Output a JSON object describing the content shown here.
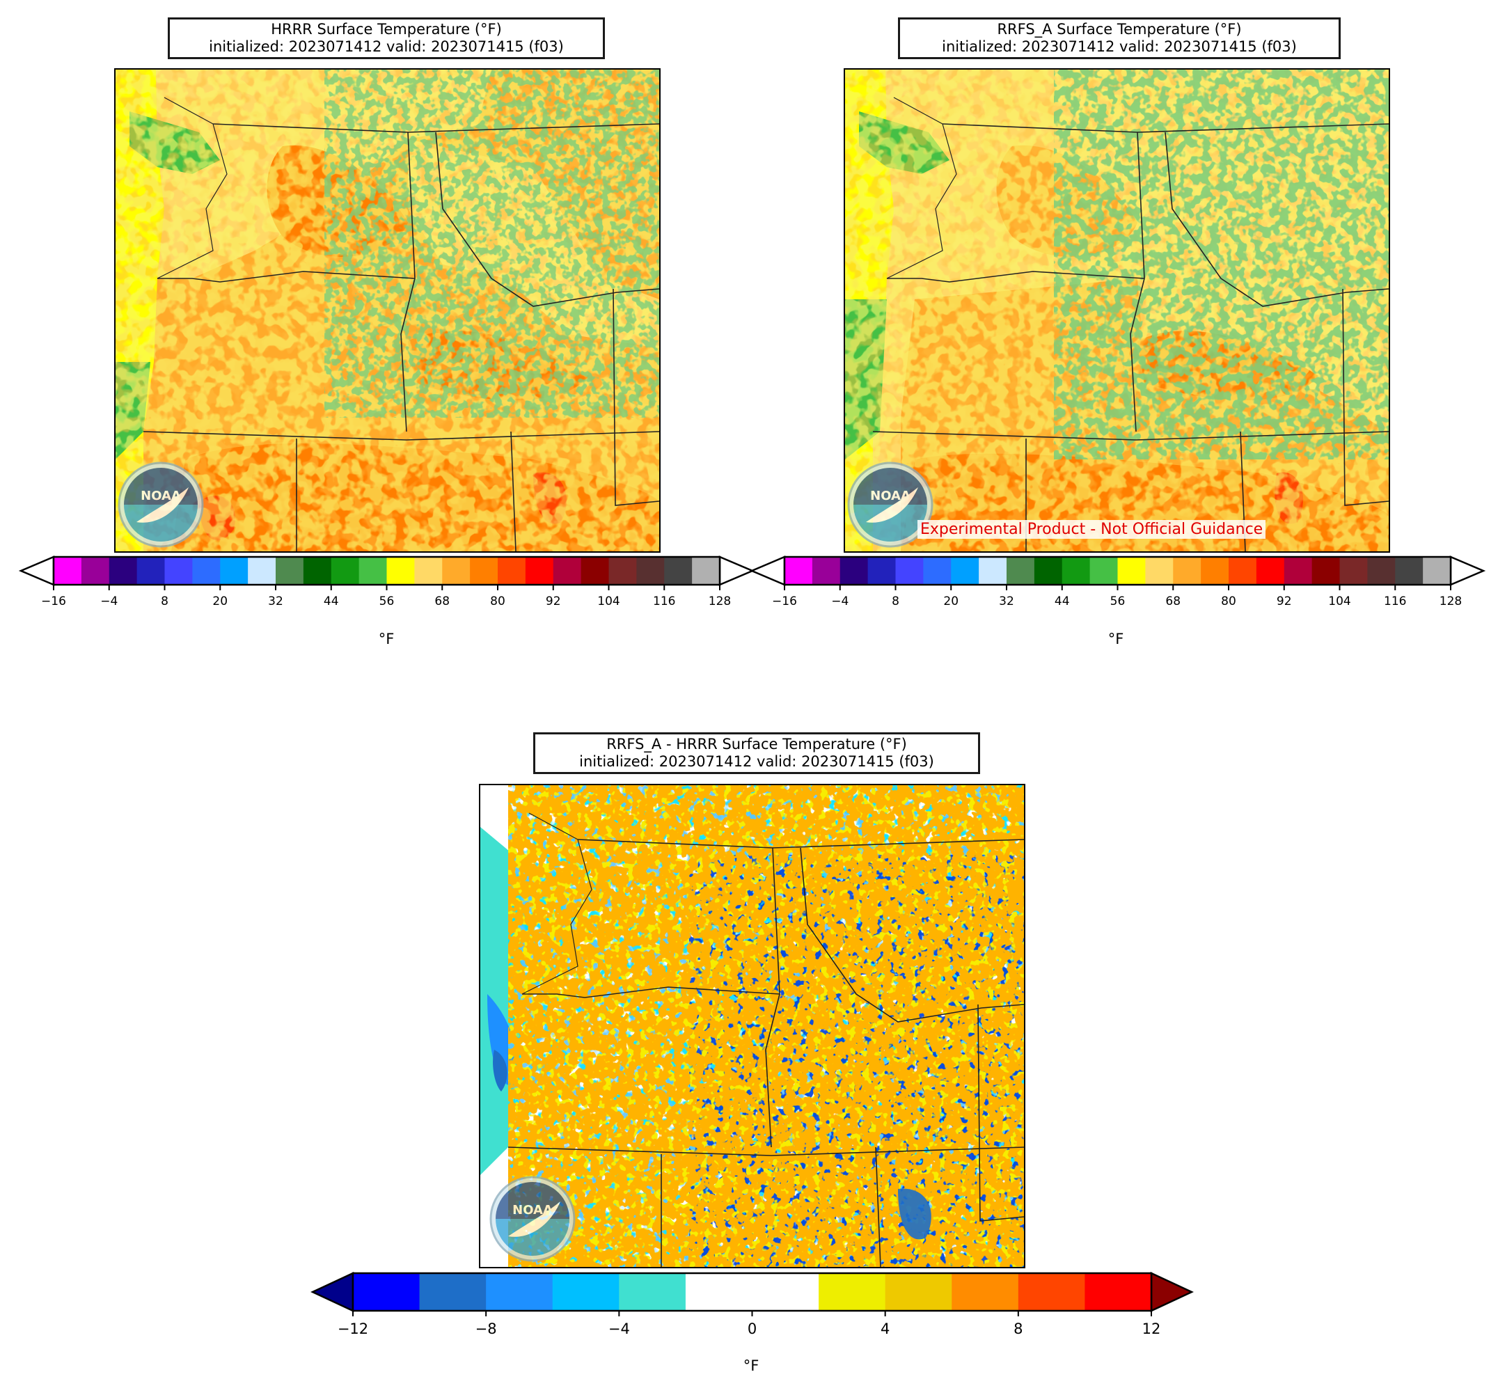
{
  "panels": {
    "hrrr": {
      "title_line1": "HRRR Surface Temperature (°F)",
      "title_line2": "initialized: 2023071412 valid: 2023071415 (f03)"
    },
    "rrfs": {
      "title_line1": "RRFS_A Surface Temperature (°F)",
      "title_line2": "initialized: 2023071412 valid: 2023071415 (f03)",
      "note": "Experimental Product - Not Official Guidance"
    },
    "diff": {
      "title_line1": "RRFS_A - HRRR Surface Temperature (°F)",
      "title_line2": "initialized: 2023071412 valid: 2023071415 (f03)"
    }
  },
  "logo": {
    "text": "NOAA",
    "icon": "noaa-logo-icon"
  },
  "colorbars": {
    "temperature": {
      "label": "°F",
      "ticks": [
        "−16",
        "−4",
        "8",
        "20",
        "32",
        "44",
        "56",
        "68",
        "80",
        "92",
        "104",
        "116",
        "128"
      ],
      "under_color": "#ffffff",
      "over_color": "#ffffff",
      "colors": [
        "#ff00ff",
        "#990099",
        "#2b007f",
        "#2222bb",
        "#4444ff",
        "#2d6cff",
        "#00a0ff",
        "#cce8ff",
        "#4f8a4f",
        "#006400",
        "#129a12",
        "#45c045",
        "#ffff00",
        "#ffd966",
        "#ffaa2a",
        "#ff7f00",
        "#ff4500",
        "#ff0000",
        "#b0003a",
        "#8b0000",
        "#7a2828",
        "#583030",
        "#444444",
        "#b0b0b0"
      ]
    },
    "difference": {
      "label": "°F",
      "ticks": [
        "−12",
        "−8",
        "−4",
        "0",
        "4",
        "8",
        "12"
      ],
      "under_color": "#00008b",
      "over_color": "#8b0000",
      "colors": [
        "#0000ff",
        "#1e6ec8",
        "#1e90ff",
        "#00bfff",
        "#40e0d0",
        "#ffffff",
        "#ffffff",
        "#eeee00",
        "#eec900",
        "#ff8c00",
        "#ff4500",
        "#ff0000"
      ]
    }
  }
}
